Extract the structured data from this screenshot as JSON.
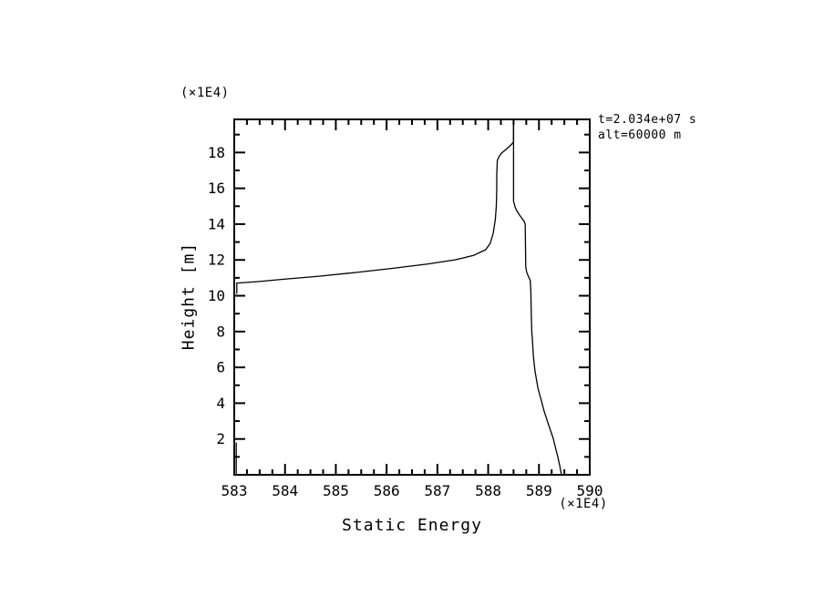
{
  "chart_data": {
    "type": "line",
    "title": "",
    "xlabel": "Static Energy",
    "ylabel": "Height [m]",
    "x_unit_label": "(×1E4)",
    "y_unit_label": "(×1E4)",
    "annotations": {
      "time": "t=2.034e+07 s",
      "altitude": "alt=60000 m"
    },
    "xlim": [
      583,
      590
    ],
    "ylim": [
      0,
      19.85
    ],
    "x_major_ticks": [
      583,
      584,
      585,
      586,
      587,
      588,
      589,
      590
    ],
    "x_minor_step": 0.25,
    "y_major_ticks": [
      2,
      4,
      6,
      8,
      10,
      12,
      14,
      16,
      18
    ],
    "y_minor_step": 1,
    "grid": false,
    "legend": "none",
    "line_color": "#000000",
    "background_color": "#ffffff",
    "series": [
      {
        "name": "profile-upper-branch",
        "points": [
          [
            583.05,
            10.13
          ],
          [
            583.05,
            10.71
          ],
          [
            583.47,
            10.79
          ],
          [
            583.95,
            10.92
          ],
          [
            584.67,
            11.09
          ],
          [
            585.39,
            11.3
          ],
          [
            586.11,
            11.53
          ],
          [
            586.82,
            11.78
          ],
          [
            587.36,
            12.01
          ],
          [
            587.72,
            12.26
          ],
          [
            587.95,
            12.57
          ],
          [
            588.04,
            12.93
          ],
          [
            588.1,
            13.49
          ],
          [
            588.14,
            14.25
          ],
          [
            588.16,
            15.01
          ],
          [
            588.17,
            16.0
          ],
          [
            588.17,
            16.79
          ],
          [
            588.18,
            17.56
          ],
          [
            588.21,
            17.76
          ],
          [
            588.26,
            17.96
          ],
          [
            588.35,
            18.17
          ],
          [
            588.44,
            18.4
          ],
          [
            588.5,
            18.58
          ],
          [
            588.5,
            19.85
          ]
        ]
      },
      {
        "name": "profile-right-branch",
        "points": [
          [
            588.5,
            19.85
          ],
          [
            588.5,
            15.27
          ],
          [
            588.53,
            14.96
          ],
          [
            588.56,
            14.76
          ],
          [
            588.62,
            14.5
          ],
          [
            588.71,
            14.15
          ],
          [
            588.73,
            13.99
          ],
          [
            588.74,
            11.6
          ],
          [
            588.76,
            11.3
          ],
          [
            588.8,
            11.04
          ],
          [
            588.83,
            10.84
          ],
          [
            588.84,
            10.18
          ],
          [
            588.85,
            8.91
          ],
          [
            588.86,
            7.89
          ],
          [
            588.87,
            7.63
          ],
          [
            588.89,
            6.62
          ],
          [
            588.92,
            5.85
          ],
          [
            588.95,
            5.34
          ],
          [
            588.98,
            4.83
          ],
          [
            589.04,
            4.22
          ],
          [
            589.1,
            3.56
          ],
          [
            589.16,
            3.05
          ],
          [
            589.22,
            2.54
          ],
          [
            589.28,
            2.04
          ],
          [
            589.32,
            1.58
          ],
          [
            589.37,
            1.02
          ],
          [
            589.41,
            0.51
          ],
          [
            589.44,
            0.03
          ]
        ]
      },
      {
        "name": "profile-surface-segment",
        "points": [
          [
            583.04,
            0.08
          ],
          [
            583.04,
            1.78
          ]
        ]
      }
    ]
  }
}
